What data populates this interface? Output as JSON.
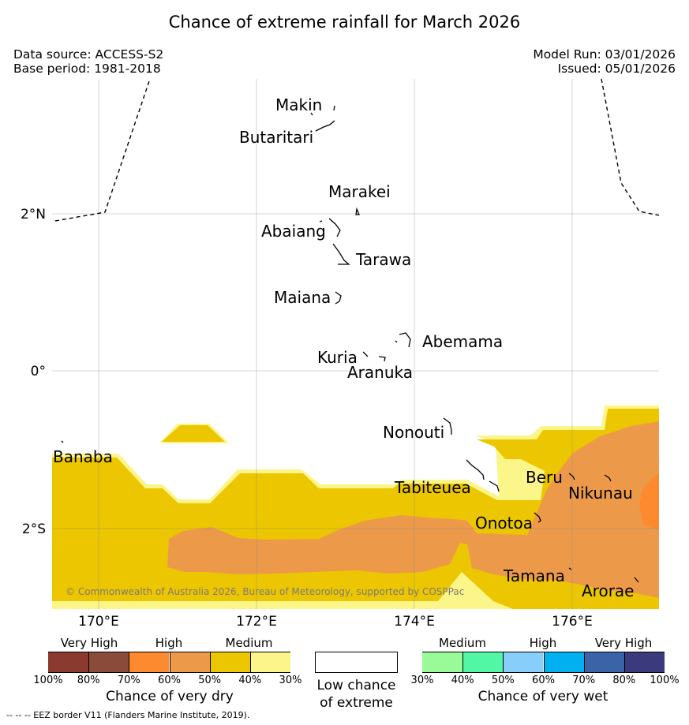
{
  "title": "Chance of extreme rainfall for March 2026",
  "data_source": "Data source: ACCESS-S2",
  "base_period": "Base period: 1981-2018",
  "model_run": "Model Run: 03/01/2026",
  "issued": "Issued: 05/01/2026",
  "copyright": "© Commonwealth of Australia 2026, Bureau of Meteorology, supported by COSPPac",
  "footer": "--  --  -- EEZ border V11 (Flanders Marine Institute, 2019).",
  "map": {
    "lon_labels": [
      "170°E",
      "172°E",
      "174°E",
      "176°E"
    ],
    "lat_labels": [
      "2°N",
      "0°",
      "2°S"
    ],
    "places": [
      "Makin",
      "Butaritari",
      "Marakei",
      "Abaiang",
      "Tarawa",
      "Maiana",
      "Abemama",
      "Kuria",
      "Aranuka",
      "Nonouti",
      "Banaba",
      "Tabiteuea",
      "Beru",
      "Nikunau",
      "Onotoa",
      "Tamana",
      "Arorae"
    ]
  },
  "legend": {
    "dry": {
      "categories": [
        "Very High",
        "High",
        "Medium"
      ],
      "ticks": [
        "100%",
        "80%",
        "70%",
        "60%",
        "50%",
        "40%",
        "30%"
      ],
      "colors": [
        "#8b3a2f",
        "#8b4b3b",
        "#fd8a2f",
        "#ec9a4a",
        "#ecc600",
        "#fcf589"
      ],
      "caption": "Chance of very dry"
    },
    "low": {
      "caption_line1": "Low chance",
      "caption_line2": "of extreme",
      "color": "#ffffff"
    },
    "wet": {
      "categories": [
        "Medium",
        "High",
        "Very High"
      ],
      "ticks": [
        "30%",
        "40%",
        "50%",
        "60%",
        "70%",
        "80%",
        "100%"
      ],
      "colors": [
        "#98fb98",
        "#52f7a5",
        "#87cefa",
        "#00b0ef",
        "#3a63a8",
        "#3a3a7c"
      ],
      "caption": "Chance of very wet"
    }
  }
}
